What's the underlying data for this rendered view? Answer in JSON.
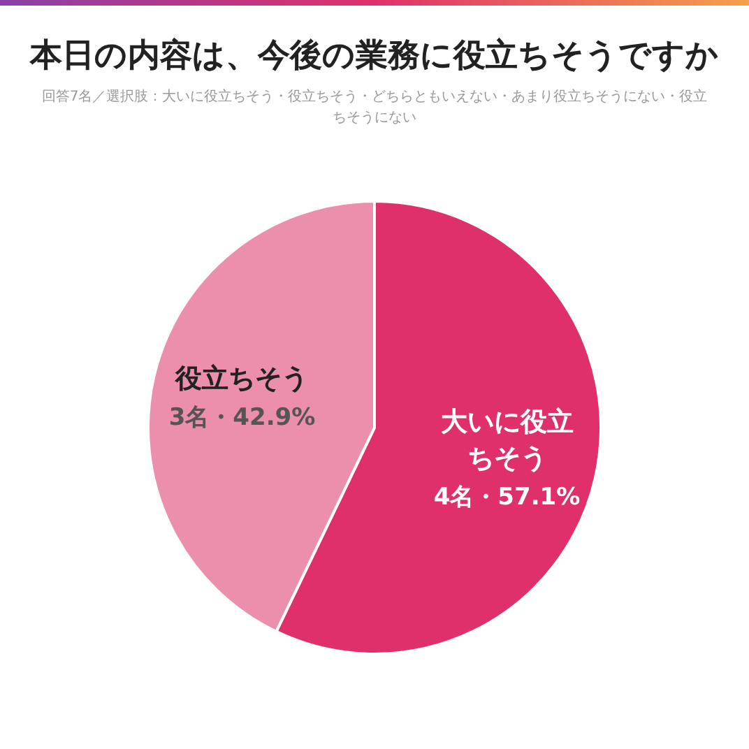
{
  "chart_data": {
    "type": "pie",
    "title": "本日の内容は、今後の業務に役立ちそうですか",
    "subtitle": "回答7名／選択肢：大いに役立ちそう・役立ちそう・どちらともいえない・あまり役立ちそうにない・役立ちそうにない",
    "categories": [
      "大いに役立ちそう",
      "役立ちそう"
    ],
    "values": [
      4,
      3
    ],
    "value_labels": [
      "4名・57.1%",
      "3名・42.9%"
    ],
    "colors": [
      "#e0306b",
      "#ec8fad"
    ]
  }
}
